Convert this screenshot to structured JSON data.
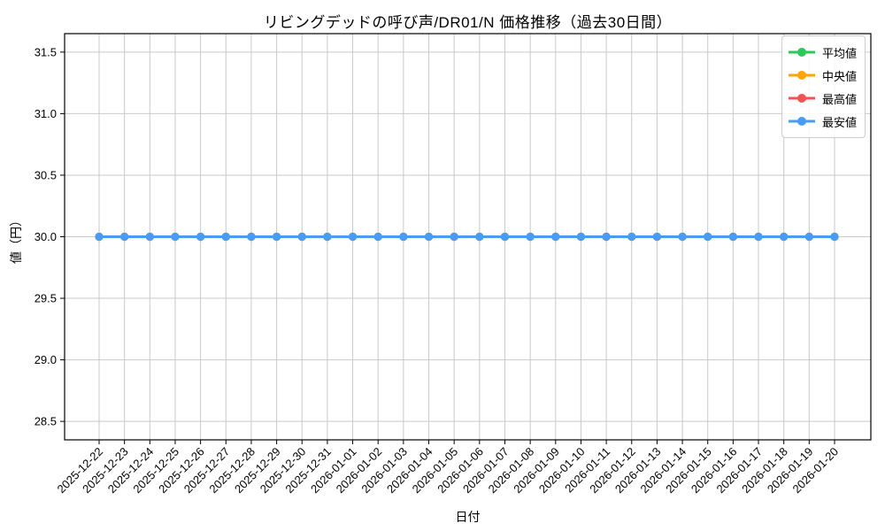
{
  "chart_data": {
    "type": "line",
    "title": "リビングデッドの呼び声/DR01/N 価格推移（過去30日間）",
    "xlabel": "日付",
    "ylabel": "値（円）",
    "x": [
      "2025-12-22",
      "2025-12-23",
      "2025-12-24",
      "2025-12-25",
      "2025-12-26",
      "2025-12-27",
      "2025-12-28",
      "2025-12-29",
      "2025-12-30",
      "2025-12-31",
      "2026-01-01",
      "2026-01-02",
      "2026-01-03",
      "2026-01-04",
      "2026-01-05",
      "2026-01-06",
      "2026-01-07",
      "2026-01-08",
      "2026-01-09",
      "2026-01-10",
      "2026-01-11",
      "2026-01-12",
      "2026-01-13",
      "2026-01-14",
      "2026-01-15",
      "2026-01-16",
      "2026-01-17",
      "2026-01-18",
      "2026-01-19",
      "2026-01-20"
    ],
    "series": [
      {
        "key": "average",
        "name": "平均値",
        "color": "#2dc85a",
        "values": [
          30.0,
          30.0,
          30.0,
          30.0,
          30.0,
          30.0,
          30.0,
          30.0,
          30.0,
          30.0,
          30.0,
          30.0,
          30.0,
          30.0,
          30.0,
          30.0,
          30.0,
          30.0,
          30.0,
          30.0,
          30.0,
          30.0,
          30.0,
          30.0,
          30.0,
          30.0,
          30.0,
          30.0,
          30.0,
          30.0
        ]
      },
      {
        "key": "median",
        "name": "中央値",
        "color": "#ffa502",
        "values": [
          30.0,
          30.0,
          30.0,
          30.0,
          30.0,
          30.0,
          30.0,
          30.0,
          30.0,
          30.0,
          30.0,
          30.0,
          30.0,
          30.0,
          30.0,
          30.0,
          30.0,
          30.0,
          30.0,
          30.0,
          30.0,
          30.0,
          30.0,
          30.0,
          30.0,
          30.0,
          30.0,
          30.0,
          30.0,
          30.0
        ]
      },
      {
        "key": "highest",
        "name": "最高値",
        "color": "#f25252",
        "values": [
          30.0,
          30.0,
          30.0,
          30.0,
          30.0,
          30.0,
          30.0,
          30.0,
          30.0,
          30.0,
          30.0,
          30.0,
          30.0,
          30.0,
          30.0,
          30.0,
          30.0,
          30.0,
          30.0,
          30.0,
          30.0,
          30.0,
          30.0,
          30.0,
          30.0,
          30.0,
          30.0,
          30.0,
          30.0,
          30.0
        ]
      },
      {
        "key": "lowest",
        "name": "最安値",
        "color": "#489cf5",
        "values": [
          30.0,
          30.0,
          30.0,
          30.0,
          30.0,
          30.0,
          30.0,
          30.0,
          30.0,
          30.0,
          30.0,
          30.0,
          30.0,
          30.0,
          30.0,
          30.0,
          30.0,
          30.0,
          30.0,
          30.0,
          30.0,
          30.0,
          30.0,
          30.0,
          30.0,
          30.0,
          30.0,
          30.0,
          30.0,
          30.0
        ]
      }
    ],
    "ylim": [
      28.35,
      31.65
    ],
    "yticks": [
      28.5,
      29.0,
      29.5,
      30.0,
      30.5,
      31.0,
      31.5
    ],
    "grid": true,
    "grid_color": "#c9c9c9",
    "spine_color": "#000000",
    "legend_position": "upper right"
  }
}
